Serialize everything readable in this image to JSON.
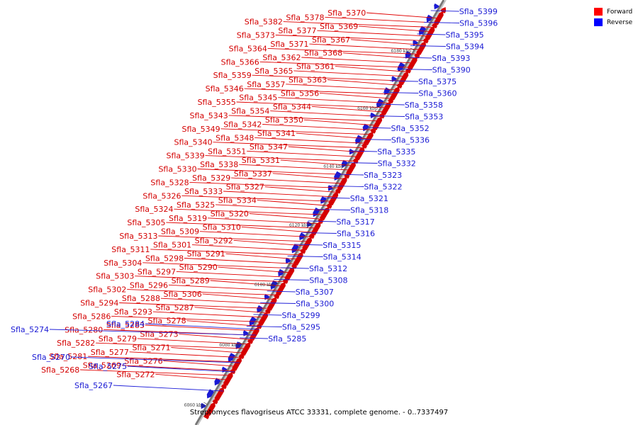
{
  "caption": "Streptomyces flavogriseus ATCC 33331, complete genome. - 0..7337497",
  "legend": [
    {
      "label": "Forward",
      "color": "#ff0000"
    },
    {
      "label": "Reverse",
      "color": "#0000ff"
    }
  ],
  "ticks": [
    "6060 kbp",
    "6080 kbp",
    "6100 kbp",
    "6120 kbp",
    "6140 kbp",
    "6160 kbp",
    "6180 kbp"
  ],
  "forward_labels": [
    "Sfla_5370",
    "Sfla_5378",
    "Sfla_5382",
    "Sfla_5369",
    "Sfla_5377",
    "Sfla_5373",
    "Sfla_5367",
    "Sfla_5371",
    "Sfla_5364",
    "Sfla_5368",
    "Sfla_5362",
    "Sfla_5366",
    "Sfla_5361",
    "Sfla_5365",
    "Sfla_5359",
    "Sfla_5363",
    "Sfla_5357",
    "Sfla_5346",
    "Sfla_5356",
    "Sfla_5345",
    "Sfla_5355",
    "Sfla_5344",
    "Sfla_5354",
    "Sfla_5343",
    "Sfla_5350",
    "Sfla_5342",
    "Sfla_5349",
    "Sfla_5341",
    "Sfla_5348",
    "Sfla_5340",
    "Sfla_5347",
    "Sfla_5351",
    "Sfla_5339",
    "Sfla_5331",
    "Sfla_5338",
    "Sfla_5330",
    "Sfla_5337",
    "Sfla_5329",
    "Sfla_5328",
    "Sfla_5327",
    "Sfla_5333",
    "Sfla_5326",
    "Sfla_5334",
    "Sfla_5325",
    "Sfla_5324",
    "Sfla_5320",
    "Sfla_5319",
    "Sfla_5305",
    "Sfla_5310",
    "Sfla_5309",
    "Sfla_5313",
    "Sfla_5292",
    "Sfla_5301",
    "Sfla_5311",
    "Sfla_5291",
    "Sfla_5298",
    "Sfla_5304",
    "Sfla_5290",
    "Sfla_5297",
    "Sfla_5303",
    "Sfla_5289",
    "Sfla_5296",
    "Sfla_5302",
    "Sfla_5306",
    "Sfla_5288",
    "Sfla_5294",
    "Sfla_5287",
    "Sfla_5293",
    "Sfla_5286",
    "Sfla_5278",
    "Sfla_5283",
    "Sfla_5280",
    "Sfla_5273",
    "Sfla_5279",
    "Sfla_5282",
    "Sfla_5271",
    "Sfla_5277",
    "Sfla_5281",
    "Sfla_5276",
    "Sfla_5269",
    "Sfla_5268",
    "Sfla_5272"
  ],
  "reverse_labels": [
    "Sfla_5399",
    "Sfla_5396",
    "Sfla_5395",
    "Sfla_5394",
    "Sfla_5393",
    "Sfla_5390",
    "Sfla_5375",
    "Sfla_5360",
    "Sfla_5358",
    "Sfla_5353",
    "Sfla_5352",
    "Sfla_5336",
    "Sfla_5335",
    "Sfla_5332",
    "Sfla_5323",
    "Sfla_5322",
    "Sfla_5321",
    "Sfla_5318",
    "Sfla_5317",
    "Sfla_5316",
    "Sfla_5315",
    "Sfla_5314",
    "Sfla_5312",
    "Sfla_5308",
    "Sfla_5307",
    "Sfla_5300",
    "Sfla_5299",
    "Sfla_5295",
    "Sfla_5285",
    "Sfla_5284",
    "Sfla_5274",
    "Sfla_5270",
    "Sfla_5275",
    "Sfla_5267"
  ]
}
